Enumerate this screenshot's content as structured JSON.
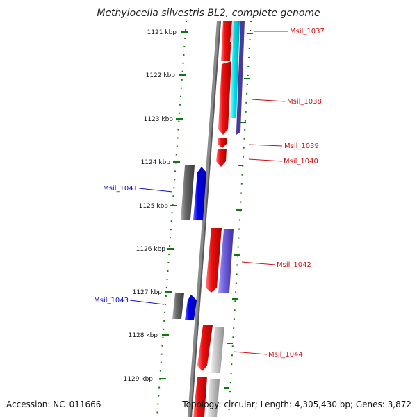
{
  "title": "Methylocella silvestris BL2, complete genome",
  "accession": "Accession: NC_011666",
  "summary": "Topology: circular; Length: 4,305,430 bp; Genes: 3,872",
  "kbp_labels": [
    "1121 kbp",
    "1122 kbp",
    "1123 kbp",
    "1124 kbp",
    "1125 kbp",
    "1126 kbp",
    "1127 kbp",
    "1128 kbp",
    "1129 kbp"
  ],
  "genes_right": [
    "Msil_1037",
    "Msil_1038",
    "Msil_1039",
    "Msil_1040",
    "Msil_1042",
    "Msil_1044"
  ],
  "genes_left": [
    "Msil_1041",
    "Msil_1043"
  ],
  "colors": {
    "forward_red": "#ee1111",
    "reverse_blue": "#0000ee",
    "grey_feature": "#707070",
    "purple_feature": "#7060dd",
    "cyan_feature": "#00e5f0",
    "tick_green": "#117711",
    "backbone_grey": "#8a8a8a"
  }
}
